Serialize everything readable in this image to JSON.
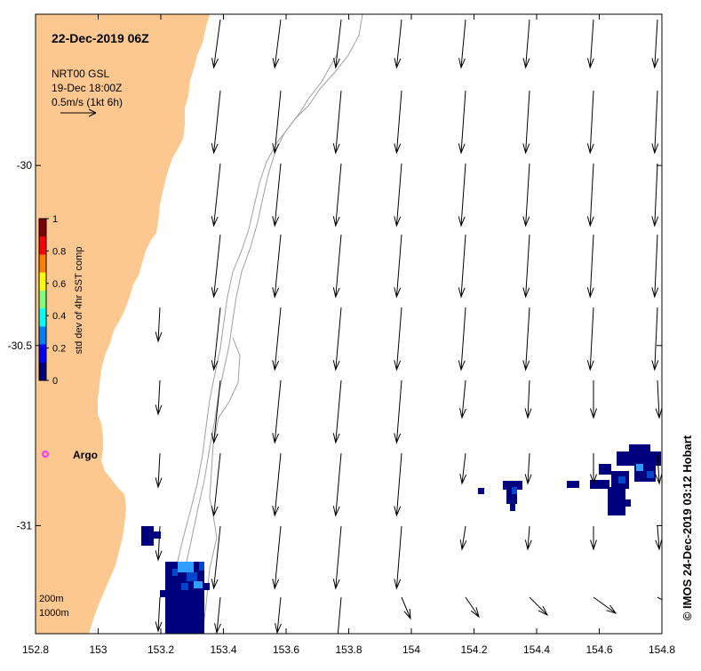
{
  "map": {
    "title": "22-Dec-2019 06Z",
    "info_lines": [
      "NRT00 GSL",
      "19-Dec 18:00Z",
      "0.5m/s (1kt 6h)"
    ],
    "argo_label": "Argo",
    "depth_labels": [
      "200m",
      "1000m"
    ],
    "credit": "© IMOS 24-Dec-2019 03:12 Hobart",
    "colors": {
      "land": "#fcc890",
      "contour": "#a0a0a0",
      "argo": "#ff33ff",
      "arrow": "#000000",
      "sst_dark": "#00007f",
      "sst_mid": "#0046cc",
      "sst_light": "#2f9cff"
    },
    "x_axis": {
      "min": 152.8,
      "max": 154.8,
      "ticks": [
        "152.8",
        "153",
        "153.2",
        "153.4",
        "153.6",
        "153.8",
        "154",
        "154.2",
        "154.4",
        "154.6",
        "154.8"
      ]
    },
    "y_axis": {
      "min": -31.3,
      "max": -29.58,
      "ticks": [
        "-30",
        "-30.5",
        "-31"
      ]
    }
  },
  "colorbar": {
    "label": "std dev of 4hr SST comp",
    "ticks": [
      "0",
      "0.2",
      "0.4",
      "0.6",
      "0.8",
      "1"
    ],
    "colors": [
      "#00007f",
      "#0000ff",
      "#007fff",
      "#00ffff",
      "#7fff7f",
      "#ffff00",
      "#ff7f00",
      "#ff0000",
      "#7f0000"
    ]
  }
}
